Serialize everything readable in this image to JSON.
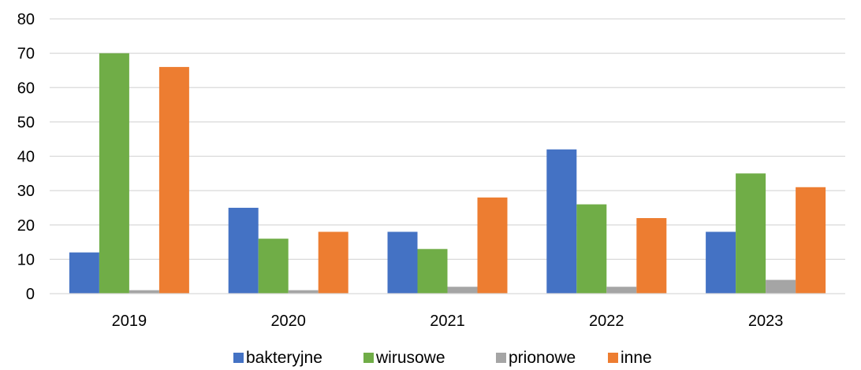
{
  "chart_data": {
    "type": "bar",
    "title": "",
    "xlabel": "",
    "ylabel": "",
    "categories": [
      "2019",
      "2020",
      "2021",
      "2022",
      "2023"
    ],
    "ylim": [
      0,
      80
    ],
    "yticks": [
      "0",
      "10",
      "20",
      "30",
      "40",
      "50",
      "60",
      "70",
      "80"
    ],
    "grid": true,
    "legend_position": "bottom",
    "series": [
      {
        "name": "bakteryjne",
        "color": "#4472C4",
        "values": [
          12,
          25,
          18,
          42,
          18
        ]
      },
      {
        "name": "wirusowe",
        "color": "#70AD47",
        "values": [
          70,
          16,
          13,
          26,
          35
        ]
      },
      {
        "name": "prionowe",
        "color": "#A5A5A5",
        "values": [
          1,
          1,
          2,
          2,
          4
        ]
      },
      {
        "name": "inne",
        "color": "#ED7D31",
        "values": [
          66,
          18,
          28,
          22,
          31
        ]
      }
    ]
  }
}
